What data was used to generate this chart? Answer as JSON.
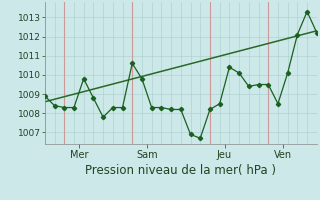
{
  "bg_color": "#cce8e8",
  "plot_bg_color": "#cce8e8",
  "grid_color": "#aacccc",
  "line_color": "#1a6020",
  "trend_color": "#2a6828",
  "separator_color": "#cc9999",
  "xlabel": "Pression niveau de la mer( hPa )",
  "yticks": [
    1007,
    1008,
    1009,
    1010,
    1011,
    1012,
    1013
  ],
  "ylim": [
    1006.4,
    1013.8
  ],
  "xlim": [
    0,
    28
  ],
  "xtick_positions": [
    3.5,
    10.5,
    18.5,
    24.5
  ],
  "xtick_labels": [
    "Mer",
    "Sam",
    "Jeu",
    "Ven"
  ],
  "vline_positions": [
    2,
    9,
    17,
    23
  ],
  "data_x": [
    0,
    1,
    2,
    3,
    4,
    5,
    6,
    7,
    8,
    9,
    10,
    11,
    12,
    13,
    14,
    15,
    16,
    17,
    18,
    19,
    20,
    21,
    22,
    23,
    24,
    25,
    26,
    27,
    28
  ],
  "data_y": [
    1008.9,
    1008.4,
    1008.3,
    1008.3,
    1009.8,
    1008.8,
    1007.8,
    1008.3,
    1008.3,
    1010.6,
    1009.8,
    1008.3,
    1008.3,
    1008.2,
    1008.2,
    1006.9,
    1006.7,
    1008.2,
    1008.5,
    1010.4,
    1010.1,
    1009.4,
    1009.5,
    1009.5,
    1008.5,
    1010.1,
    1012.1,
    1013.3,
    1012.2
  ],
  "trend_x": [
    0,
    28
  ],
  "trend_y": [
    1008.6,
    1012.3
  ],
  "xlabel_fontsize": 8.5,
  "ytick_fontsize": 6.5,
  "xtick_fontsize": 7.0
}
